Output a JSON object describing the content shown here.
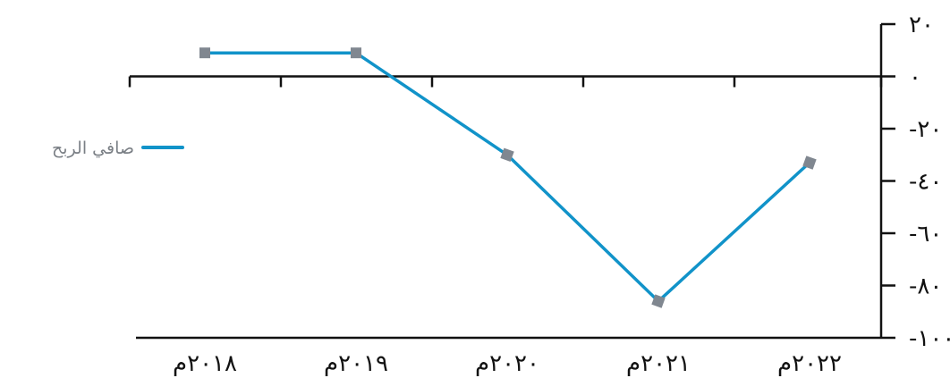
{
  "chart_data": {
    "type": "line",
    "title": "",
    "xlabel": "",
    "ylabel": "",
    "categories": [
      "٢٠١٨م",
      "٢٠١٩م",
      "٢٠٢٠م",
      "٢٠٢١م",
      "٢٠٢٢م"
    ],
    "series": [
      {
        "name": "صافي الربح",
        "values": [
          9,
          9,
          -30,
          -86,
          -33
        ]
      }
    ],
    "ylim": [
      -100,
      20
    ],
    "yticks": [
      20,
      0,
      -20,
      -40,
      -60,
      -80,
      -100
    ],
    "ytick_labels": [
      "٢٠",
      "٠",
      "-٢٠",
      "-٤٠",
      "-٦٠",
      "-٨٠",
      "-١٠٠"
    ],
    "grid": false,
    "legend": "left",
    "y_axis_side": "right",
    "colors": {
      "line": "#1193c9",
      "marker": "#808790",
      "axis": "#111111",
      "legend_text": "#7a7f85"
    }
  }
}
